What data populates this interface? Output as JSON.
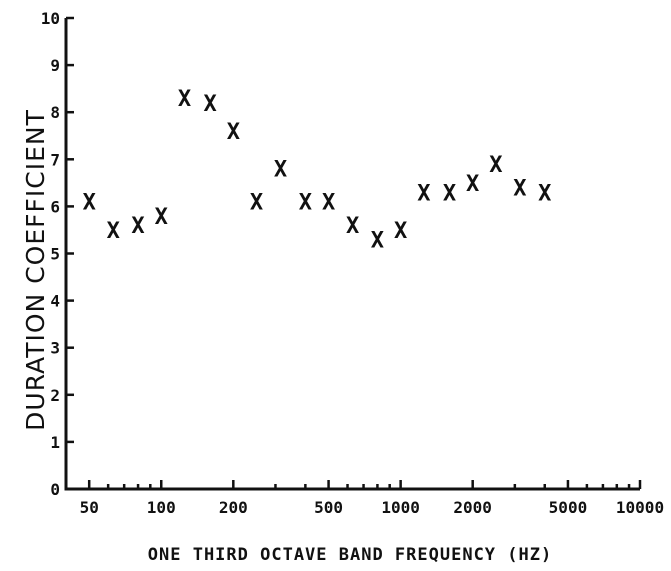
{
  "chart_data": {
    "type": "scatter",
    "xlabel": "ONE THIRD OCTAVE BAND FREQUENCY (HZ)",
    "ylabel": "DURATION COEFFICIENT",
    "x_scale": "log",
    "xlim": [
      40,
      10000
    ],
    "ylim": [
      0,
      10
    ],
    "x_ticks": [
      50,
      100,
      200,
      500,
      1000,
      2000,
      5000,
      10000
    ],
    "x_tick_labels": [
      "50",
      "100",
      "200",
      "500",
      "1000",
      "2000",
      "5000",
      "10000"
    ],
    "y_ticks": [
      0,
      1,
      2,
      3,
      4,
      5,
      6,
      7,
      8,
      9,
      10
    ],
    "y_tick_labels": [
      "0",
      "1",
      "2",
      "3",
      "4",
      "5",
      "6",
      "7",
      "8",
      "9",
      "10"
    ],
    "marker": "X",
    "grid": false,
    "x": [
      50,
      63,
      80,
      100,
      125,
      160,
      200,
      250,
      315,
      400,
      500,
      630,
      800,
      1000,
      1250,
      1600,
      2000,
      2500,
      3150,
      4000
    ],
    "y": [
      6.1,
      5.5,
      5.6,
      5.8,
      8.3,
      8.2,
      7.6,
      6.1,
      6.8,
      6.1,
      6.1,
      5.6,
      5.3,
      5.5,
      6.3,
      6.3,
      6.5,
      6.9,
      6.4,
      6.3
    ]
  }
}
